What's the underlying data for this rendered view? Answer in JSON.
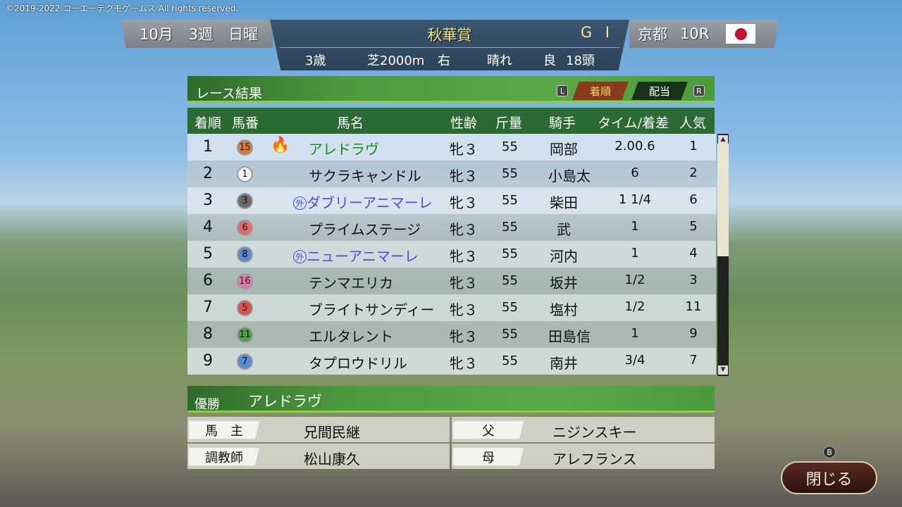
{
  "copyright": "©2019-2022 コーエーテクモゲームス All rights reserved.",
  "race": {
    "month": "10月",
    "week": "3週",
    "day": "日曜",
    "name": "秋華賞",
    "grade": "G I",
    "age": "3歳",
    "surface": "芝2000m",
    "direction": "右",
    "weather": "晴れ",
    "condition": "良",
    "runners": "18頭",
    "course": "京都",
    "race_no": "10R",
    "flag": "japan-flag-icon"
  },
  "results": {
    "title": "レース結果",
    "key_left": "L",
    "key_right": "R",
    "tabs": [
      {
        "label": "着順",
        "active": true
      },
      {
        "label": "配当",
        "active": false
      }
    ]
  },
  "columns": [
    "着順",
    "馬番",
    "馬名",
    "性齢",
    "斤量",
    "騎手",
    "タイム/着差",
    "人気"
  ],
  "rows": [
    {
      "pos": "1",
      "num": "15",
      "color": "#d47a3e",
      "text": "#222",
      "name": "アレドラヴ",
      "name_color": "#1a8a1a",
      "foreign": false,
      "fire": true,
      "sexage": "牝３",
      "weight": "55",
      "jockey": "岡部",
      "time": "2.00.6",
      "pop": "1"
    },
    {
      "pos": "2",
      "num": "1",
      "color": "#f0f0f0",
      "text": "#222",
      "name": "サクラキャンドル",
      "name_color": "#111",
      "foreign": false,
      "fire": false,
      "sexage": "牝３",
      "weight": "55",
      "jockey": "小島太",
      "time": "6",
      "pop": "2"
    },
    {
      "pos": "3",
      "num": "3",
      "color": "#6a6a6a",
      "text": "#111",
      "name": "ダブリーアニマーレ",
      "name_color": "#4a4ae0",
      "foreign": true,
      "fire": false,
      "sexage": "牝３",
      "weight": "55",
      "jockey": "柴田",
      "time": "1 1/4",
      "pop": "6"
    },
    {
      "pos": "4",
      "num": "6",
      "color": "#e06a6a",
      "text": "#222",
      "name": "プライムステージ",
      "name_color": "#111",
      "foreign": false,
      "fire": false,
      "sexage": "牝３",
      "weight": "55",
      "jockey": "武",
      "time": "1",
      "pop": "5"
    },
    {
      "pos": "5",
      "num": "8",
      "color": "#5a8ad0",
      "text": "#111",
      "name": "ニューアニマーレ",
      "name_color": "#4a4ae0",
      "foreign": true,
      "fire": false,
      "sexage": "牝３",
      "weight": "55",
      "jockey": "河内",
      "time": "1",
      "pop": "4"
    },
    {
      "pos": "6",
      "num": "16",
      "color": "#e07ab0",
      "text": "#222",
      "name": "テンマエリカ",
      "name_color": "#111",
      "foreign": false,
      "fire": false,
      "sexage": "牝３",
      "weight": "55",
      "jockey": "坂井",
      "time": "1/2",
      "pop": "3"
    },
    {
      "pos": "7",
      "num": "5",
      "color": "#d85050",
      "text": "#222",
      "name": "ブライトサンディー",
      "name_color": "#111",
      "foreign": false,
      "fire": false,
      "sexage": "牝３",
      "weight": "55",
      "jockey": "塩村",
      "time": "1/2",
      "pop": "11"
    },
    {
      "pos": "8",
      "num": "11",
      "color": "#4aa04a",
      "text": "#111",
      "name": "エルタレント",
      "name_color": "#111",
      "foreign": false,
      "fire": false,
      "sexage": "牝３",
      "weight": "55",
      "jockey": "田島信",
      "time": "1",
      "pop": "9"
    },
    {
      "pos": "9",
      "num": "7",
      "color": "#5a8ad0",
      "text": "#111",
      "name": "タプロウドリル",
      "name_color": "#111",
      "foreign": false,
      "fire": false,
      "sexage": "牝３",
      "weight": "55",
      "jockey": "南井",
      "time": "3/4",
      "pop": "7"
    }
  ],
  "foreign_mark": "外",
  "winner": {
    "label": "優勝",
    "name": "アレドラヴ",
    "owner_label": "馬　主",
    "owner": "兄間民継",
    "trainer_label": "調教師",
    "trainer": "松山康久",
    "sire_label": "父",
    "sire": "ニジンスキー",
    "dam_label": "母",
    "dam": "アレフランス"
  },
  "close": {
    "key": "B",
    "label": "閉じる"
  }
}
